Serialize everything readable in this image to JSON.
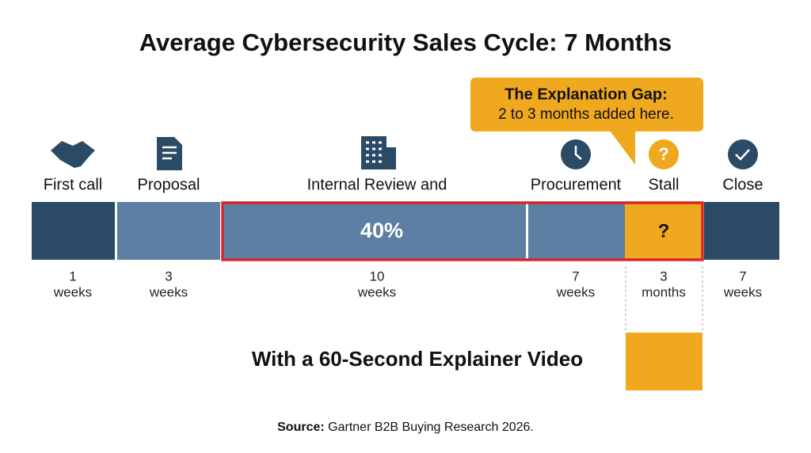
{
  "title": "Average Cybersecurity Sales Cycle: 7 Months",
  "callout": {
    "title": "The Explanation Gap:",
    "text": "2 to 3 months added here."
  },
  "stages": [
    {
      "label": "First call",
      "duration": 1,
      "unit": "weeks"
    },
    {
      "label": "Proposal",
      "duration": 3,
      "unit": "weeks"
    },
    {
      "label": "Internal Review and",
      "duration": 10,
      "unit": "weeks"
    },
    {
      "label": "Procurement",
      "duration": 7,
      "unit": "weeks"
    },
    {
      "label": "Stall",
      "duration": 3,
      "unit": "months",
      "icon_text": "?"
    },
    {
      "label": "Close",
      "duration": 7,
      "unit": "weeks"
    }
  ],
  "bar_labels": {
    "highlight": "40%",
    "stall": "?"
  },
  "comparison": "With a 60-Second Explainer Video",
  "source": {
    "label": "Source:",
    "text": "Gartner B2B Buying Research 2026."
  }
}
